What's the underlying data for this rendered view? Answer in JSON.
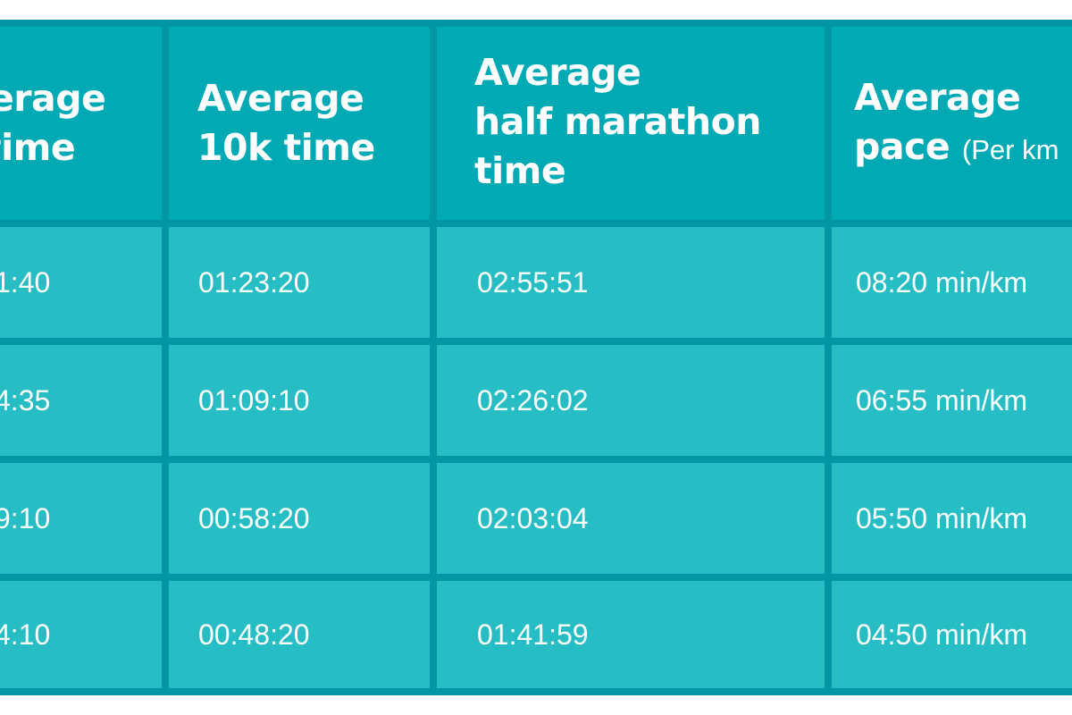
{
  "table": {
    "headers": [
      {
        "line1": "erage",
        "line2": "time",
        "line3": ""
      },
      {
        "line1": "Average",
        "line2": "10k time",
        "line3": ""
      },
      {
        "line1": "Average",
        "line2": "half marathon",
        "line3": "time"
      },
      {
        "line1": "Average",
        "line2": "pace",
        "suffix": "(Per km"
      }
    ],
    "rows": [
      [
        "1:40",
        "01:23:20",
        "02:55:51",
        "08:20 min/km"
      ],
      [
        "4:35",
        "01:09:10",
        "02:26:02",
        "06:55 min/km"
      ],
      [
        "9:10",
        "00:58:20",
        "02:03:04",
        "05:50 min/km"
      ],
      [
        "4:10",
        "00:48:20",
        "01:41:59",
        "04:50 min/km"
      ]
    ]
  },
  "colors": {
    "border": "#0096a4",
    "header_bg": "#00aab5",
    "cell_bg": "#26bdc4",
    "text": "#ffffff"
  }
}
